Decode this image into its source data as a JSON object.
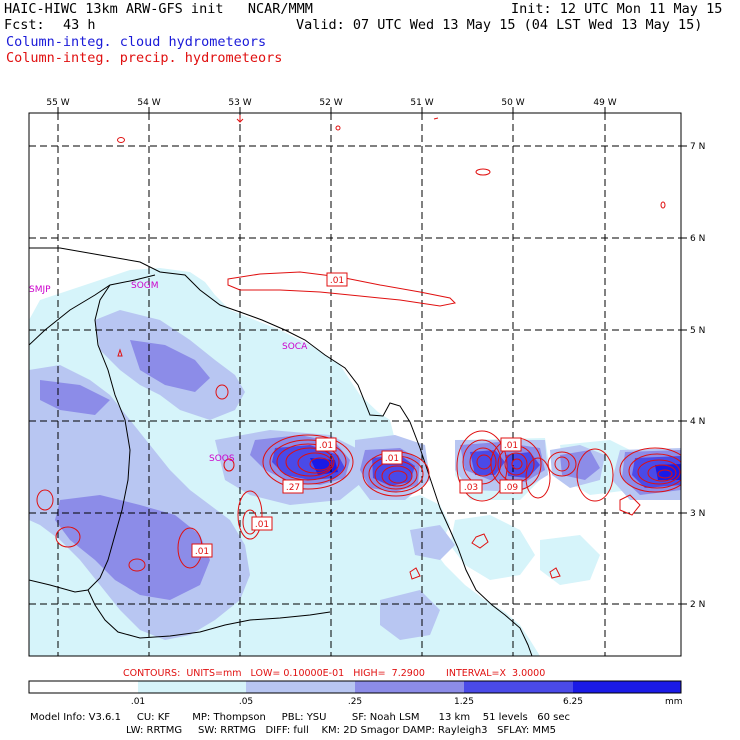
{
  "header": {
    "title_left": "HAIC-HIWC 13km ARW-GFS init   NCAR/MMM",
    "init": "Init: 12 UTC Mon 11 May 15",
    "fcst_label": "Fcst:",
    "fcst_value": "43 h",
    "valid": "Valid: 07 UTC Wed 13 May 15 (04 LST Wed 13 May 15)",
    "field1": "Column-integ. cloud hydrometeors",
    "field2": "Column-integ. precip. hydrometeors"
  },
  "colors": {
    "field1": "#1a1ad8",
    "field2": "#e01010",
    "shade": [
      "#ffffff",
      "#d6f4fa",
      "#b8c6f2",
      "#8c8ce8",
      "#4a4ae8",
      "#1a1ae6"
    ],
    "contour": "#e01010"
  },
  "map": {
    "lon_labels": [
      "55 W",
      "54 W",
      "53 W",
      "52 W",
      "51 W",
      "50 W",
      "49 W"
    ],
    "lat_labels": [
      "7 N",
      "6 N",
      "5 N",
      "4 N",
      "3 N",
      "2 N"
    ],
    "place_labels": [
      "SMJP",
      "SOGM",
      "SOCA",
      "SOOS"
    ],
    "contour_labels": [
      ".01",
      ".01",
      ".01",
      ".01",
      ".27",
      ".01",
      ".01",
      ".03",
      ".09"
    ]
  },
  "legend": {
    "contours_line": "CONTOURS:  UNITS=mm   LOW= 0.10000E-01   HIGH=  7.2900       INTERVAL=X  3.0000",
    "ticks": [
      ".01",
      ".05",
      ".25",
      "1.25",
      "6.25"
    ],
    "units": "mm"
  },
  "footer": {
    "line1": "Model Info: V3.6.1     CU: KF       MP: Thompson     PBL: YSU        SF: Noah LSM      13 km    51 levels   60 sec",
    "line2": "LW: RRTMG     SW: RRTMG   DIFF: full    KM: 2D Smagor DAMP: Rayleigh3   SFLAY: MM5"
  }
}
